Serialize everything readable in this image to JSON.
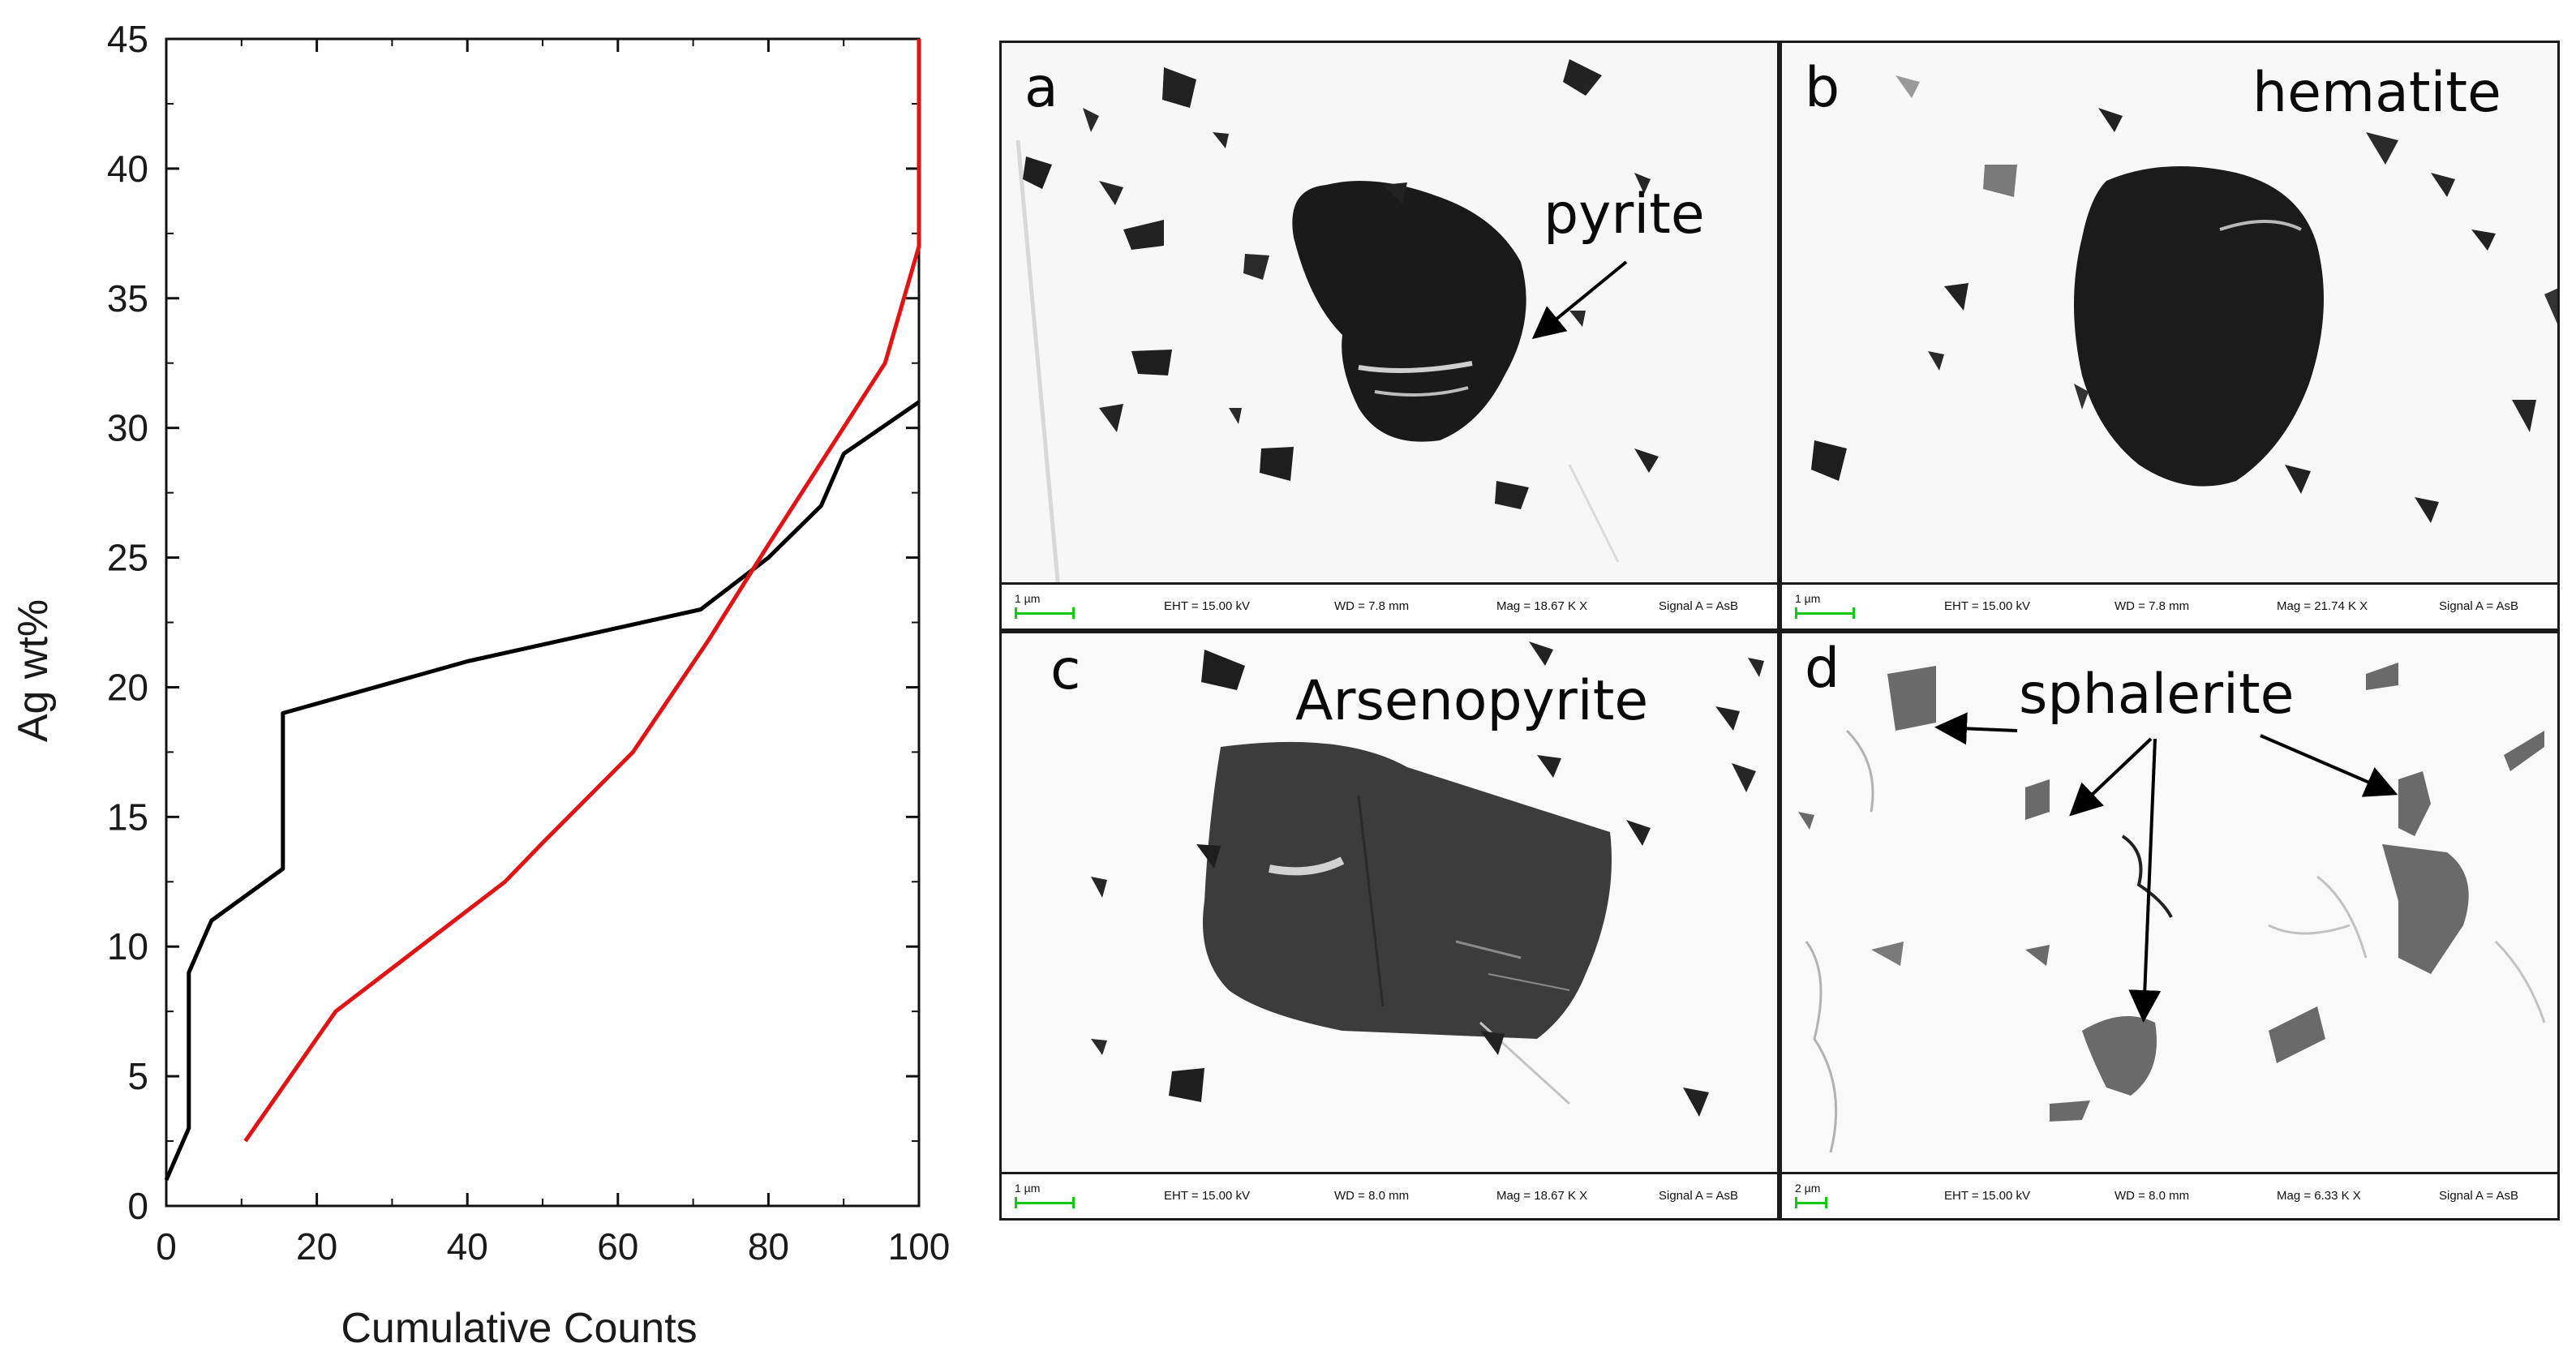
{
  "chart_data": {
    "type": "line",
    "xlabel": "Cumulative Counts",
    "ylabel": "Ag wt%",
    "xlim": [
      0,
      100
    ],
    "ylim": [
      0,
      45
    ],
    "x_ticks": [
      "0",
      "20",
      "40",
      "60",
      "80",
      "100"
    ],
    "y_ticks": [
      "0",
      "5",
      "10",
      "15",
      "20",
      "25",
      "30",
      "35",
      "40",
      "45"
    ],
    "grid": false,
    "series": [
      {
        "color": "#000000",
        "points": [
          [
            0,
            1.0
          ],
          [
            3,
            3.0
          ],
          [
            3,
            9.0
          ],
          [
            6,
            11.0
          ],
          [
            15.5,
            13.0
          ],
          [
            15.5,
            19.0
          ],
          [
            40,
            21.0
          ],
          [
            71,
            23.0
          ],
          [
            80,
            25.0
          ],
          [
            87,
            27.0
          ],
          [
            90,
            29.0
          ],
          [
            100,
            31.0
          ]
        ]
      },
      {
        "color": "#e01414",
        "points": [
          [
            10.5,
            2.5
          ],
          [
            22.5,
            7.5
          ],
          [
            45,
            12.5
          ],
          [
            50,
            14.0
          ],
          [
            62,
            17.5
          ],
          [
            72,
            21.8
          ],
          [
            80,
            25.5
          ],
          [
            95.5,
            32.5
          ],
          [
            100,
            37.0
          ],
          [
            100,
            45.0
          ]
        ]
      }
    ]
  },
  "panels": [
    {
      "letter": "a",
      "label": "pyrite",
      "scale": "1 µm",
      "eht": "EHT = 15.00 kV",
      "wd": "WD =  7.8 mm",
      "mag": "Mag =  18.67 K X",
      "signal": "Signal A = AsB"
    },
    {
      "letter": "b",
      "label": "hematite",
      "scale": "1 µm",
      "eht": "EHT = 15.00 kV",
      "wd": "WD =  7.8 mm",
      "mag": "Mag =  21.74 K X",
      "signal": "Signal A = AsB"
    },
    {
      "letter": "c",
      "label": "Arsenopyrite",
      "scale": "1 µm",
      "eht": "EHT = 15.00 kV",
      "wd": "WD =  8.0 mm",
      "mag": "Mag =  18.67 K X",
      "signal": "Signal A = AsB"
    },
    {
      "letter": "d",
      "label": "sphalerite",
      "scale": "2 µm",
      "eht": "EHT = 15.00 kV",
      "wd": "WD =  8.0 mm",
      "mag": "Mag =  6.33 K X",
      "signal": "Signal A = AsB"
    }
  ]
}
